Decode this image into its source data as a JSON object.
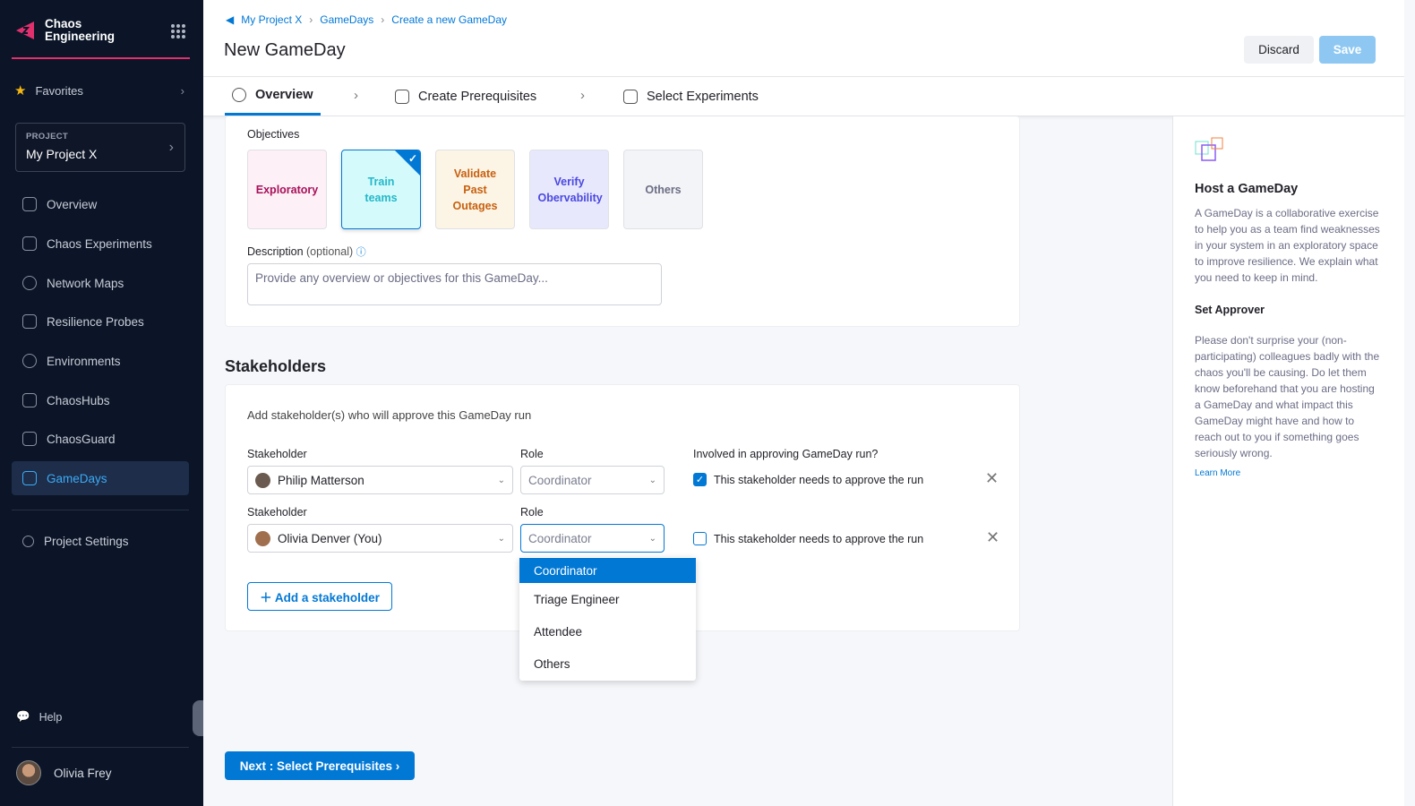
{
  "sidebar": {
    "brand": "Chaos Engineering",
    "favorites": "Favorites",
    "project_label": "PROJECT",
    "project_name": "My Project X",
    "items": [
      {
        "label": "Overview"
      },
      {
        "label": "Chaos Experiments"
      },
      {
        "label": "Network Maps"
      },
      {
        "label": "Resilience Probes"
      },
      {
        "label": "Environments"
      },
      {
        "label": "ChaosHubs"
      },
      {
        "label": "ChaosGuard"
      },
      {
        "label": "GameDays"
      }
    ],
    "settings": "Project Settings",
    "help": "Help",
    "user": "Olivia Frey",
    "accent": "#e0306e"
  },
  "header": {
    "breadcrumbs": [
      "My Project X",
      "GameDays",
      "Create a new GameDay"
    ],
    "title": "New GameDay",
    "discard": "Discard",
    "save": "Save"
  },
  "tabs": [
    {
      "label": "Overview",
      "active": true
    },
    {
      "label": "Create Prerequisites"
    },
    {
      "label": "Select Experiments"
    }
  ],
  "objectives": {
    "label": "Objectives",
    "options": [
      {
        "label": "Exploratory",
        "color": "#a8105a",
        "bg": "#fdf0f6"
      },
      {
        "label": "Train teams",
        "color": "#25b8c8",
        "bg": "#d4fafc",
        "selected": true
      },
      {
        "label": "Validate Past Outages",
        "color": "#c86010",
        "bg": "#fcf4e4"
      },
      {
        "label": "Verify Obervability",
        "color": "#4a48e0",
        "bg": "#e8e8fc"
      },
      {
        "label": "Others",
        "color": "#6b6d85",
        "bg": "#f3f4f7"
      }
    ],
    "description_label": "Description",
    "description_optional": "(optional)",
    "description_placeholder": "Provide any overview or objectives for this GameDay..."
  },
  "stakeholders": {
    "title": "Stakeholders",
    "intro": "Add stakeholder(s) who will approve this GameDay run",
    "stakeholder_label": "Stakeholder",
    "role_label": "Role",
    "involved_label": "Involved in approving GameDay run?",
    "rows": [
      {
        "name": "Philip Matterson",
        "role": "Coordinator",
        "approve_text": "This stakeholder needs to approve the run",
        "approve": true
      },
      {
        "name": "Olivia Denver (You)",
        "role": "Coordinator",
        "approve_text": "This stakeholder needs to approve the run",
        "approve": false
      }
    ],
    "add": "Add a stakeholder",
    "role_options": [
      "Coordinator",
      "Triage Engineer",
      "Attendee",
      "Others"
    ]
  },
  "next": "Next : Select Prerequisites",
  "info": {
    "title": "Host a GameDay",
    "text": "A GameDay is a collaborative exercise to help you as a team find weaknesses in your system in an exploratory space to improve resilience. We explain what you need to keep in mind.",
    "approver_title": "Set Approver",
    "approver_text": "Please don't surprise your (non-participating) colleagues badly with the chaos you'll be causing. Do let them know beforehand that you are hosting a GameDay and what impact this GameDay might have and how to reach out to you if something goes seriously wrong.",
    "learn_more": "Learn More"
  }
}
